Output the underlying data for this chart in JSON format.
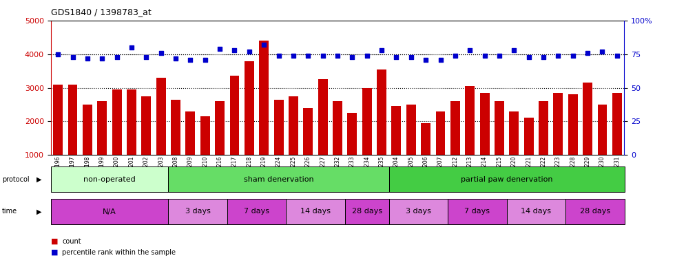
{
  "title": "GDS1840 / 1398783_at",
  "samples": [
    "GSM53196",
    "GSM53197",
    "GSM53198",
    "GSM53199",
    "GSM53200",
    "GSM53201",
    "GSM53202",
    "GSM53203",
    "GSM53208",
    "GSM53209",
    "GSM53210",
    "GSM53216",
    "GSM53217",
    "GSM53218",
    "GSM53219",
    "GSM53224",
    "GSM53225",
    "GSM53226",
    "GSM53227",
    "GSM53232",
    "GSM53233",
    "GSM53234",
    "GSM53235",
    "GSM53204",
    "GSM53205",
    "GSM53206",
    "GSM53207",
    "GSM53212",
    "GSM53213",
    "GSM53214",
    "GSM53215",
    "GSM53220",
    "GSM53221",
    "GSM53222",
    "GSM53223",
    "GSM53228",
    "GSM53229",
    "GSM53230",
    "GSM53231"
  ],
  "counts": [
    3100,
    3100,
    2500,
    2600,
    2950,
    2950,
    2750,
    3300,
    2650,
    2300,
    2150,
    2600,
    3350,
    3800,
    4400,
    2650,
    2750,
    2400,
    3250,
    2600,
    2250,
    3000,
    3550,
    2450,
    2500,
    1950,
    2300,
    2600,
    3050,
    2850,
    2600,
    2300,
    2100,
    2600,
    2850,
    2800,
    3150,
    2500,
    2850
  ],
  "percentiles": [
    75,
    73,
    72,
    72,
    73,
    80,
    73,
    76,
    72,
    71,
    71,
    79,
    78,
    77,
    82,
    74,
    74,
    74,
    74,
    74,
    73,
    74,
    78,
    73,
    73,
    71,
    71,
    74,
    78,
    74,
    74,
    78,
    73,
    73,
    74,
    74,
    76,
    77,
    74
  ],
  "bar_color": "#cc0000",
  "dot_color": "#0000cc",
  "ylim_left": [
    1000,
    5000
  ],
  "ylim_right": [
    0,
    100
  ],
  "yticks_left": [
    1000,
    2000,
    3000,
    4000,
    5000
  ],
  "yticks_right": [
    0,
    25,
    50,
    75,
    100
  ],
  "ytick_labels_right": [
    "0",
    "25",
    "50",
    "75",
    "100%"
  ],
  "grid_values": [
    2000,
    3000,
    4000
  ],
  "protocol_groups": [
    {
      "label": "non-operated",
      "start": 0,
      "end": 8,
      "color": "#ccffcc"
    },
    {
      "label": "sham denervation",
      "start": 8,
      "end": 23,
      "color": "#66dd66"
    },
    {
      "label": "partial paw denervation",
      "start": 23,
      "end": 39,
      "color": "#44cc44"
    }
  ],
  "time_groups": [
    {
      "label": "N/A",
      "start": 0,
      "end": 8,
      "color": "#cc44cc"
    },
    {
      "label": "3 days",
      "start": 8,
      "end": 12,
      "color": "#dd88dd"
    },
    {
      "label": "7 days",
      "start": 12,
      "end": 16,
      "color": "#cc44cc"
    },
    {
      "label": "14 days",
      "start": 16,
      "end": 20,
      "color": "#dd88dd"
    },
    {
      "label": "28 days",
      "start": 20,
      "end": 23,
      "color": "#cc44cc"
    },
    {
      "label": "3 days",
      "start": 23,
      "end": 27,
      "color": "#dd88dd"
    },
    {
      "label": "7 days",
      "start": 27,
      "end": 31,
      "color": "#cc44cc"
    },
    {
      "label": "14 days",
      "start": 31,
      "end": 35,
      "color": "#dd88dd"
    },
    {
      "label": "28 days",
      "start": 35,
      "end": 39,
      "color": "#cc44cc"
    }
  ],
  "bg_color": "#ffffff",
  "plot_bg_color": "#ffffff"
}
